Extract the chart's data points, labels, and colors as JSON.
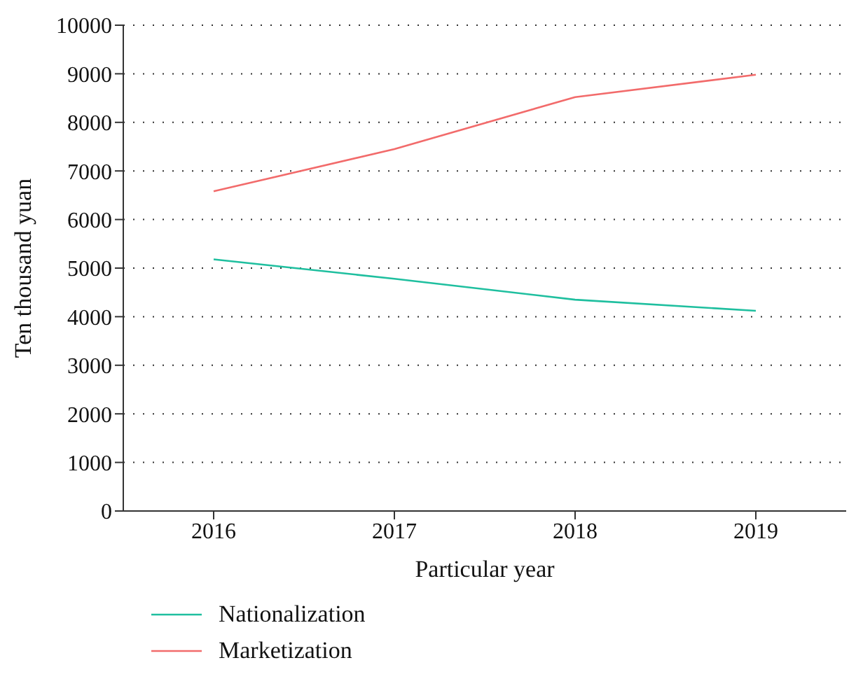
{
  "chart_data": {
    "type": "line",
    "xlabel": "Particular year",
    "ylabel": "Ten thousand yuan",
    "categories": [
      "2016",
      "2017",
      "2018",
      "2019"
    ],
    "series": [
      {
        "name": "Nationalization",
        "color": "#1fbf9f",
        "values": [
          5180,
          4780,
          4350,
          4120
        ]
      },
      {
        "name": "Marketization",
        "color": "#f26b6b",
        "values": [
          6580,
          7450,
          8520,
          8980
        ]
      }
    ],
    "ylim": [
      0,
      10000
    ],
    "yticks": [
      0,
      1000,
      2000,
      3000,
      4000,
      5000,
      6000,
      7000,
      8000,
      9000,
      10000
    ],
    "grid": "y",
    "legend": "bottom",
    "marker": "none",
    "line_style": "solid"
  }
}
